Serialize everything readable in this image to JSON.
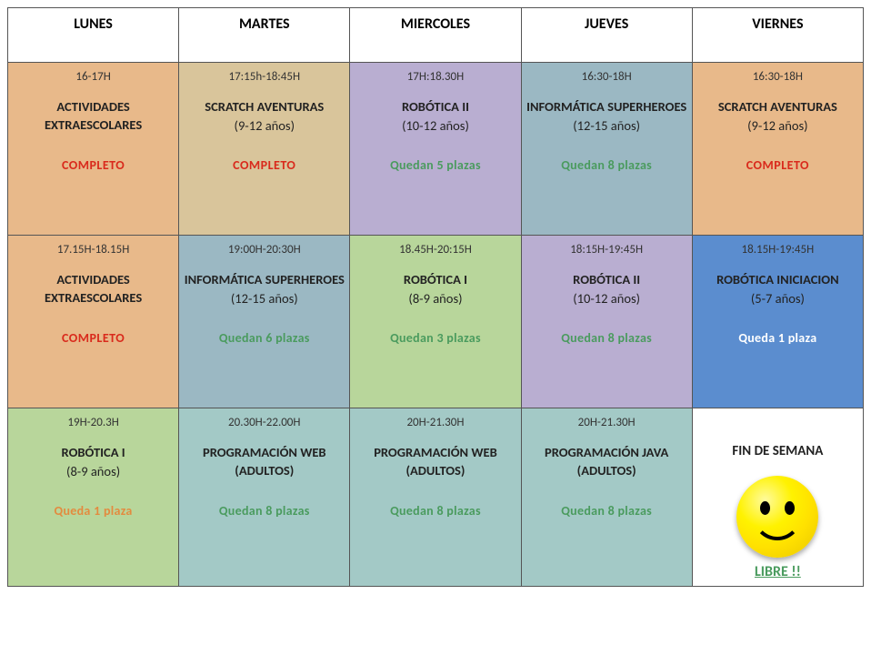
{
  "colors": {
    "orange": "#e8b98a",
    "green": "#b8d69b",
    "purple": "#b9aed1",
    "dustyblue": "#9bb8c3",
    "blue": "#5b8dcf",
    "white": "#ffffff",
    "tan": "#d9c59b",
    "teal": "#a3c9c6"
  },
  "headers": [
    "LUNES",
    "MARTES",
    "MIERCOLES",
    "JUEVES",
    "VIERNES"
  ],
  "rows": [
    [
      {
        "bg": "orange",
        "time": "16-17H",
        "title": "ACTIVIDADES EXTRAESCOLARES",
        "ages": "",
        "status": "COMPLETO",
        "statusClass": "status-completo"
      },
      {
        "bg": "tan",
        "time": "17:15h-18:45H",
        "title": "SCRATCH AVENTURAS",
        "ages": "(9-12 años)",
        "status": "COMPLETO",
        "statusClass": "status-completo"
      },
      {
        "bg": "purple",
        "time": "17H:18.30H",
        "title": "ROBÓTICA II",
        "ages": "(10-12 años)",
        "status": "Quedan 5 plazas",
        "statusClass": "status-plazas"
      },
      {
        "bg": "dustyblue",
        "time": "16:30-18H",
        "title": "INFORMÁTICA SUPERHEROES",
        "ages": "(12-15 años)",
        "status": "Quedan 8 plazas",
        "statusClass": "status-plazas"
      },
      {
        "bg": "orange",
        "time": "16:30-18H",
        "title": "SCRATCH AVENTURAS",
        "ages": "(9-12 años)",
        "status": "COMPLETO",
        "statusClass": "status-completo"
      }
    ],
    [
      {
        "bg": "orange",
        "time": "17.15H-18.15H",
        "title": "ACTIVIDADES EXTRAESCOLARES",
        "ages": "",
        "status": "COMPLETO",
        "statusClass": "status-completo"
      },
      {
        "bg": "dustyblue",
        "time": "19:00H-20:30H",
        "title": "INFORMÁTICA SUPERHEROES",
        "ages": "(12-15 años)",
        "status": "Quedan 6 plazas",
        "statusClass": "status-plazas"
      },
      {
        "bg": "green",
        "time": "18.45H-20:15H",
        "title": "ROBÓTICA I",
        "ages": "(8-9 años)",
        "status": "Quedan 3 plazas",
        "statusClass": "status-plazas"
      },
      {
        "bg": "purple",
        "time": "18:15H-19:45H",
        "title": "ROBÓTICA II",
        "ages": "(10-12 años)",
        "status": "Quedan 8 plazas",
        "statusClass": "status-plazas"
      },
      {
        "bg": "blue",
        "time": "18.15H-19:45H",
        "title": "ROBÓTICA INICIACION",
        "ages": "(5-7 años)",
        "status": "Queda 1 plaza",
        "statusClass": "status-white"
      }
    ],
    [
      {
        "bg": "green",
        "time": "19H-20.3H",
        "title": "ROBÓTICA I",
        "ages": "(8-9 años)",
        "status": "Queda 1 plaza",
        "statusClass": "status-orange"
      },
      {
        "bg": "teal",
        "time": "20.30H-22.00H",
        "title": "PROGRAMACIÓN WEB (ADULTOS)",
        "ages": "",
        "status": "Quedan 8 plazas",
        "statusClass": "status-plazas"
      },
      {
        "bg": "teal",
        "time": "20H-21.30H",
        "title": "PROGRAMACIÓN WEB (ADULTOS)",
        "ages": "",
        "status": "Quedan 8 plazas",
        "statusClass": "status-plazas"
      },
      {
        "bg": "teal",
        "time": "20H-21.30H",
        "title": "PROGRAMACIÓN JAVA (ADULTOS)",
        "ages": "",
        "status": "Quedan 8 plazas",
        "statusClass": "status-plazas"
      },
      {
        "bg": "white",
        "weekend": true,
        "title": "FIN DE SEMANA",
        "status": "LIBRE !!",
        "statusClass": "status-libre"
      }
    ]
  ]
}
